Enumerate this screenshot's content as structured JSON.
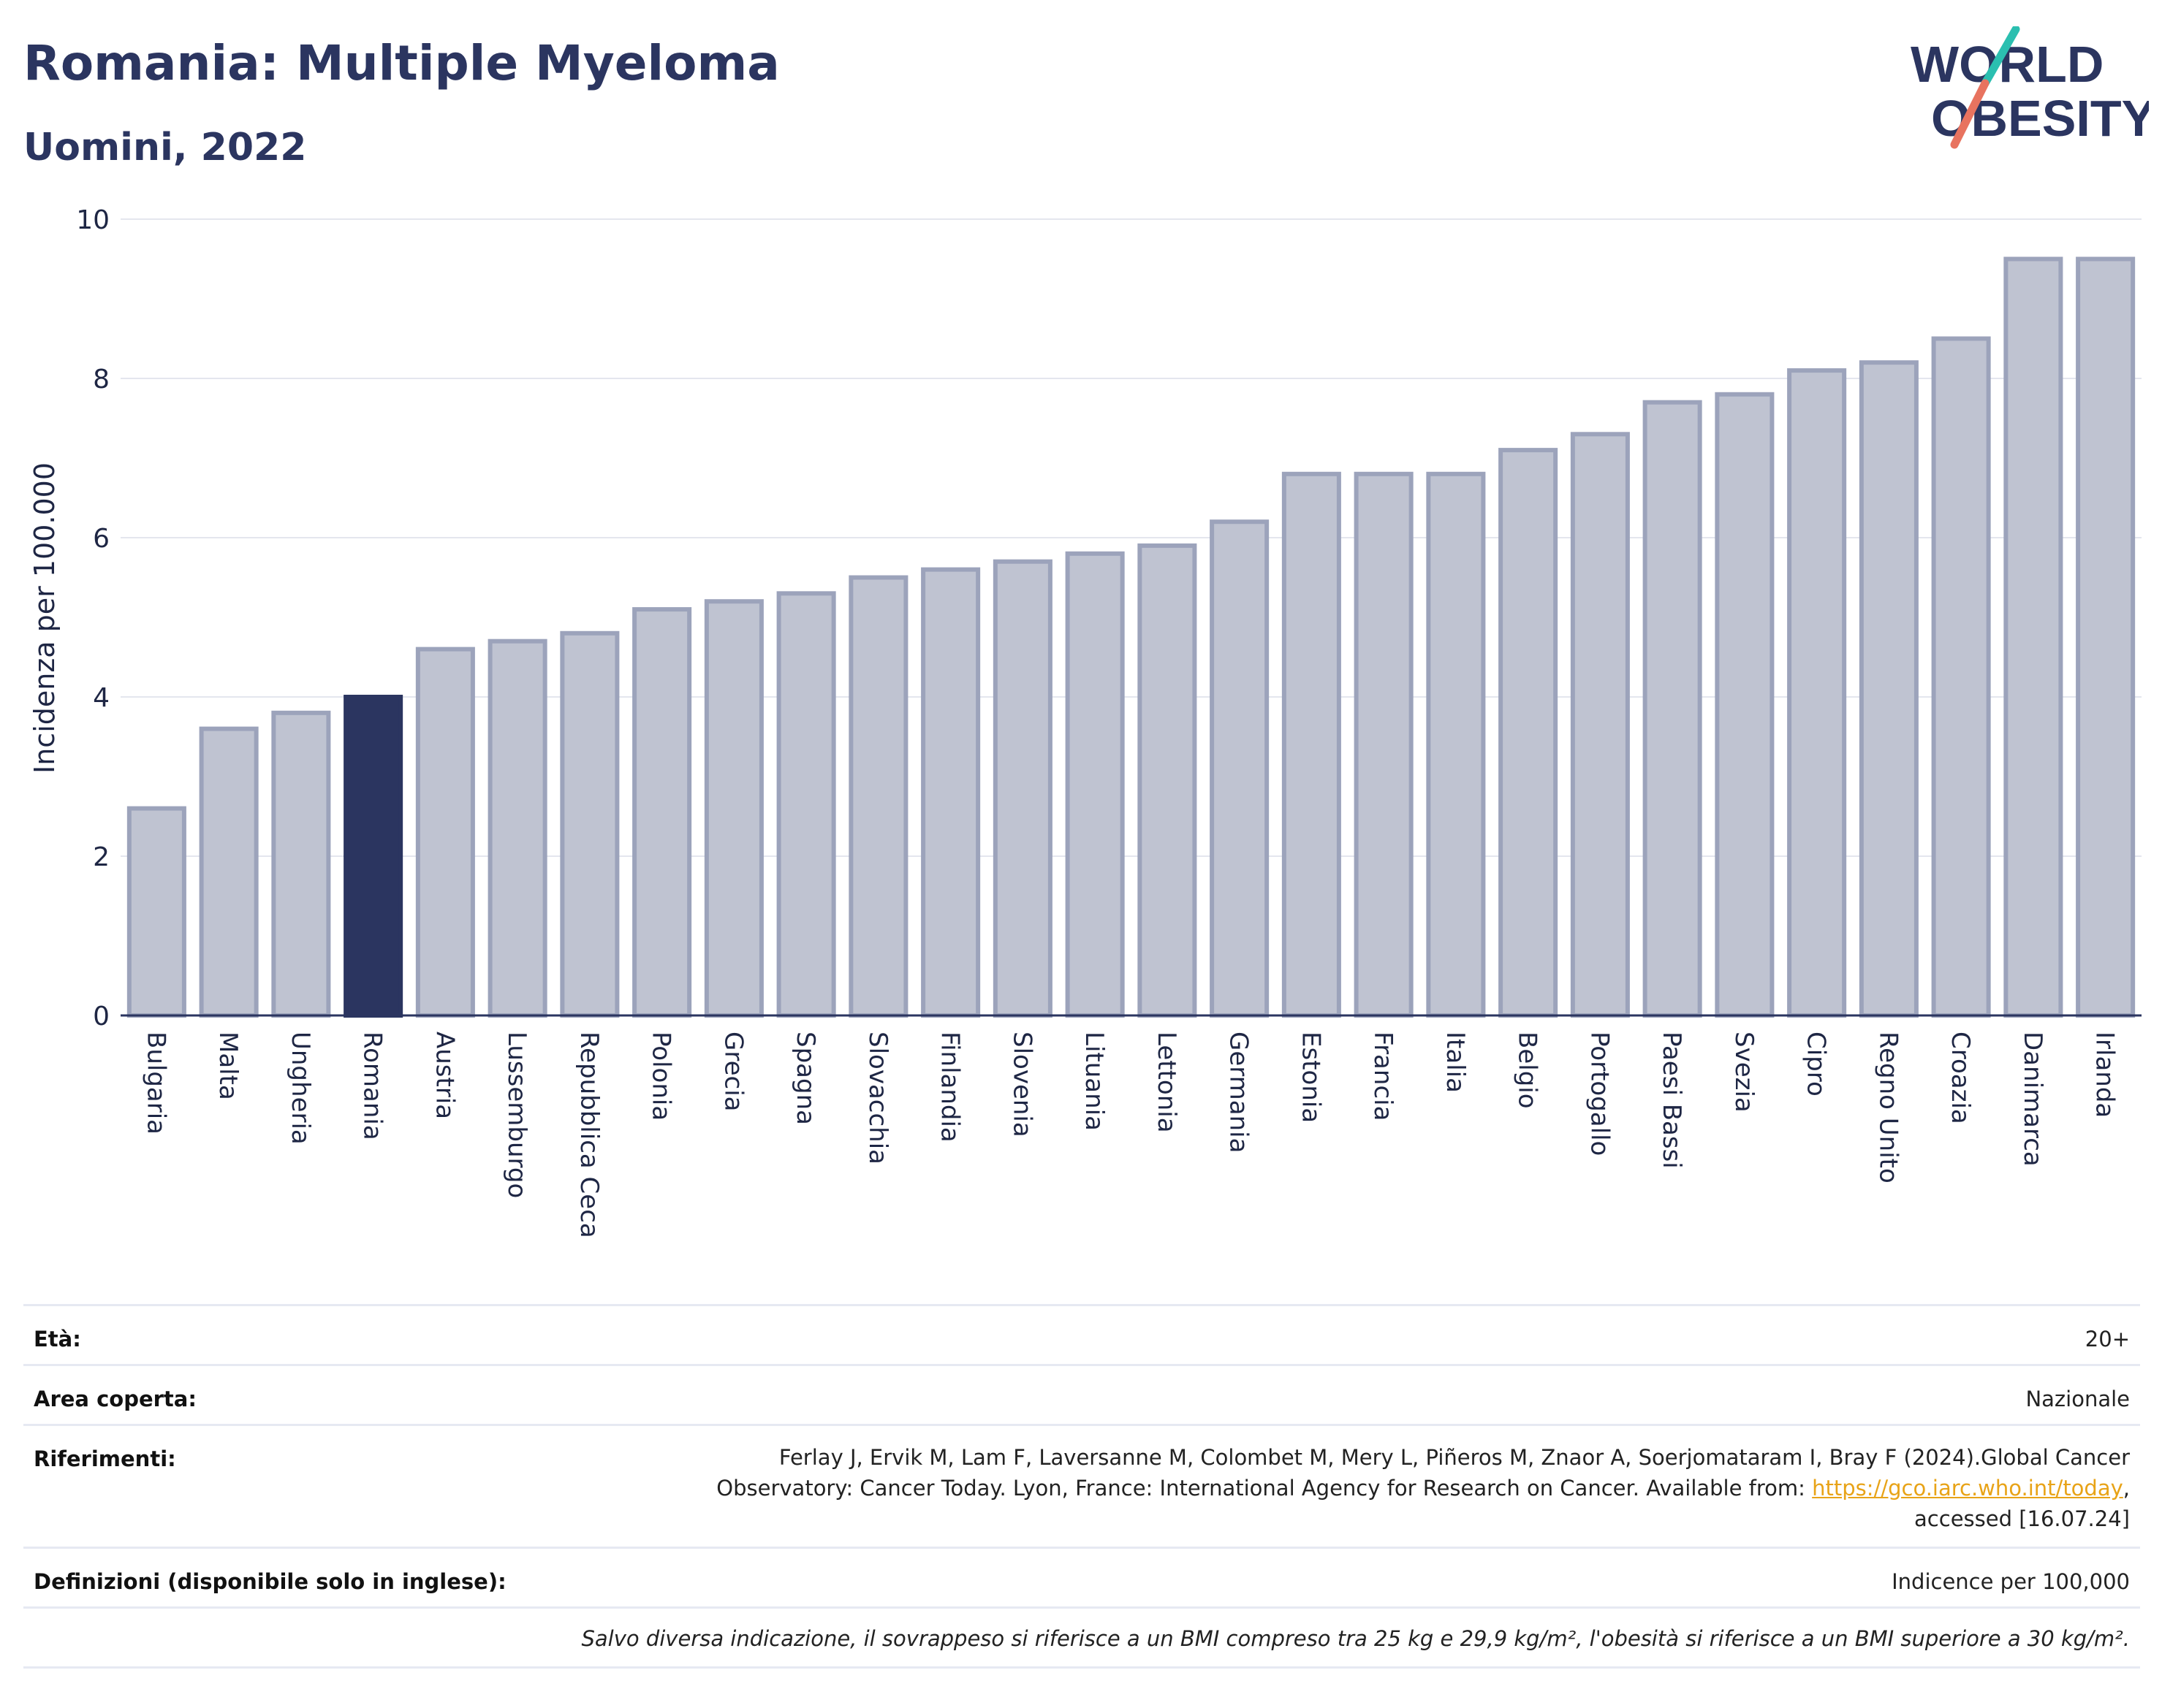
{
  "header": {
    "title": "Romania: Multiple Myeloma",
    "subtitle": "Uomini, 2022"
  },
  "logo": {
    "line1": "WORLD",
    "line2": "OBESITY"
  },
  "colors": {
    "highlight": "#2b3560",
    "bar": "#bfc3d1",
    "bar_border": "#9ca3bb",
    "grid": "#e4e6ee",
    "title": "#2b3560",
    "link": "#e8a317"
  },
  "chart_data": {
    "type": "bar",
    "ylabel": "Incidenza per 100.000",
    "xlabel": "",
    "ylim": [
      0,
      10
    ],
    "yticks": [
      0,
      2,
      4,
      6,
      8,
      10
    ],
    "grid": true,
    "highlight": "Romania",
    "categories": [
      "Bulgaria",
      "Malta",
      "Ungheria",
      "Romania",
      "Austria",
      "Lussemburgo",
      "Repubblica Ceca",
      "Polonia",
      "Grecia",
      "Spagna",
      "Slovacchia",
      "Finlandia",
      "Slovenia",
      "Lituania",
      "Lettonia",
      "Germania",
      "Estonia",
      "Francia",
      "Italia",
      "Belgio",
      "Portogallo",
      "Paesi Bassi",
      "Svezia",
      "Cipro",
      "Regno Unito",
      "Croazia",
      "Danimarca",
      "Irlanda"
    ],
    "values": [
      2.6,
      3.6,
      3.8,
      4.0,
      4.6,
      4.7,
      4.8,
      5.1,
      5.2,
      5.3,
      5.5,
      5.6,
      5.7,
      5.8,
      5.9,
      6.2,
      6.8,
      6.8,
      6.8,
      7.1,
      7.3,
      7.7,
      7.8,
      8.1,
      8.2,
      8.5,
      9.5,
      9.5
    ]
  },
  "info": {
    "age_label": "Età:",
    "age_value": "20+",
    "area_label": "Area coperta:",
    "area_value": "Nazionale",
    "refs_label": "Riferimenti:",
    "refs_line1": "Ferlay J, Ervik M, Lam F, Laversanne M, Colombet M, Mery L, Piñeros M, Znaor A, Soerjomataram I, Bray F (2024).Global Cancer",
    "refs_line2_pre": "Observatory: Cancer Today. Lyon, France: International Agency for Research on Cancer. Available from: ",
    "refs_link": "https://gco.iarc.who.int/today",
    "refs_line2_post": ",",
    "refs_line3": "accessed [16.07.24]",
    "defs_label": "Definizioni (disponibile solo in inglese):",
    "defs_value": "Indicence per 100,000",
    "footnote": "Salvo diversa indicazione, il sovrappeso si riferisce a un BMI compreso tra 25 kg e 29,9 kg/m², l'obesità si riferisce a un BMI superiore a 30 kg/m²."
  }
}
